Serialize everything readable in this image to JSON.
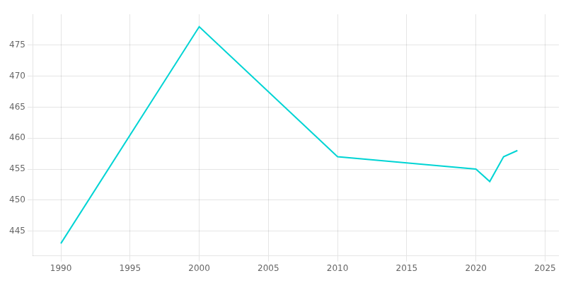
{
  "chart_data": {
    "type": "line",
    "x": [
      1990,
      2000,
      2010,
      2015,
      2020,
      2021,
      2022,
      2023
    ],
    "values": [
      443,
      478,
      457,
      456,
      455,
      453,
      457,
      458
    ],
    "color": "#00d4d4",
    "xlim": [
      1988,
      2026
    ],
    "ylim": [
      441,
      480
    ],
    "xticks": [
      1990,
      1995,
      2000,
      2005,
      2010,
      2015,
      2020,
      2025
    ],
    "yticks": [
      445,
      450,
      455,
      460,
      465,
      470,
      475
    ],
    "grid": true
  }
}
